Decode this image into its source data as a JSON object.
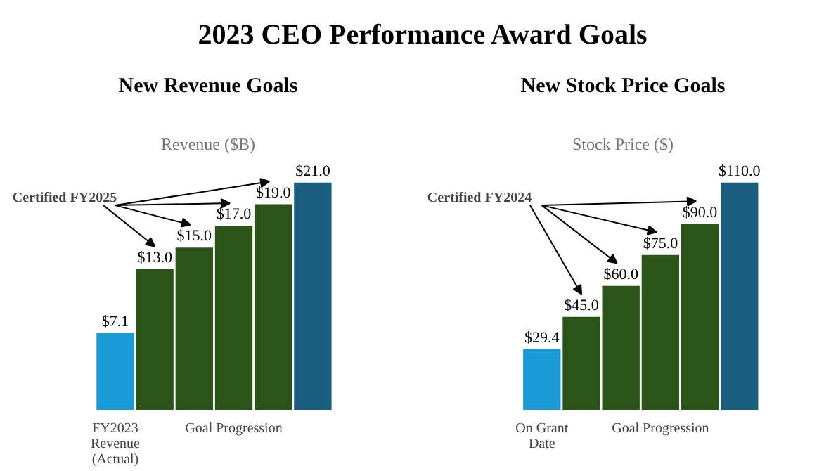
{
  "chart_data": [
    {
      "type": "bar",
      "title": "New Revenue Goals",
      "subtitle": "Revenue ($B)",
      "categories": [
        "FY2023\nRevenue\n(Actual)",
        null,
        null,
        "Goal Progression",
        null,
        null
      ],
      "values": [
        7.1,
        13.0,
        15.0,
        17.0,
        19.0,
        21.0
      ],
      "colors": [
        "#1a9bd7",
        "#2b5419",
        "#2b5419",
        "#2b5419",
        "#2b5419",
        "#1b5f80"
      ],
      "value_labels": [
        "$7.1",
        "$13.0",
        "$15.0",
        "$17.0",
        "$19.0",
        "$21.0"
      ],
      "annotations": [
        "2023 CEO Performance Award Goals",
        "Certified FY2025"
      ]
    },
    {
      "type": "bar",
      "title": "New Stock Price Goals",
      "subtitle": "Stock Price ($)",
      "categories": [
        "On Grant\nDate",
        null,
        null,
        "Goal Progression",
        null,
        null
      ],
      "values": [
        29.4,
        45.0,
        60.0,
        75.0,
        90.0,
        110.0
      ],
      "colors": [
        "#1a9bd7",
        "#2b5419",
        "#2b5419",
        "#2b5419",
        "#2b5419",
        "#1b5f80"
      ],
      "value_labels": [
        "$29.4",
        "$45.0",
        "$60.0",
        "$75.0",
        "$90.0",
        "$110.0"
      ],
      "annotations": [
        "Certified FY2024"
      ]
    }
  ]
}
